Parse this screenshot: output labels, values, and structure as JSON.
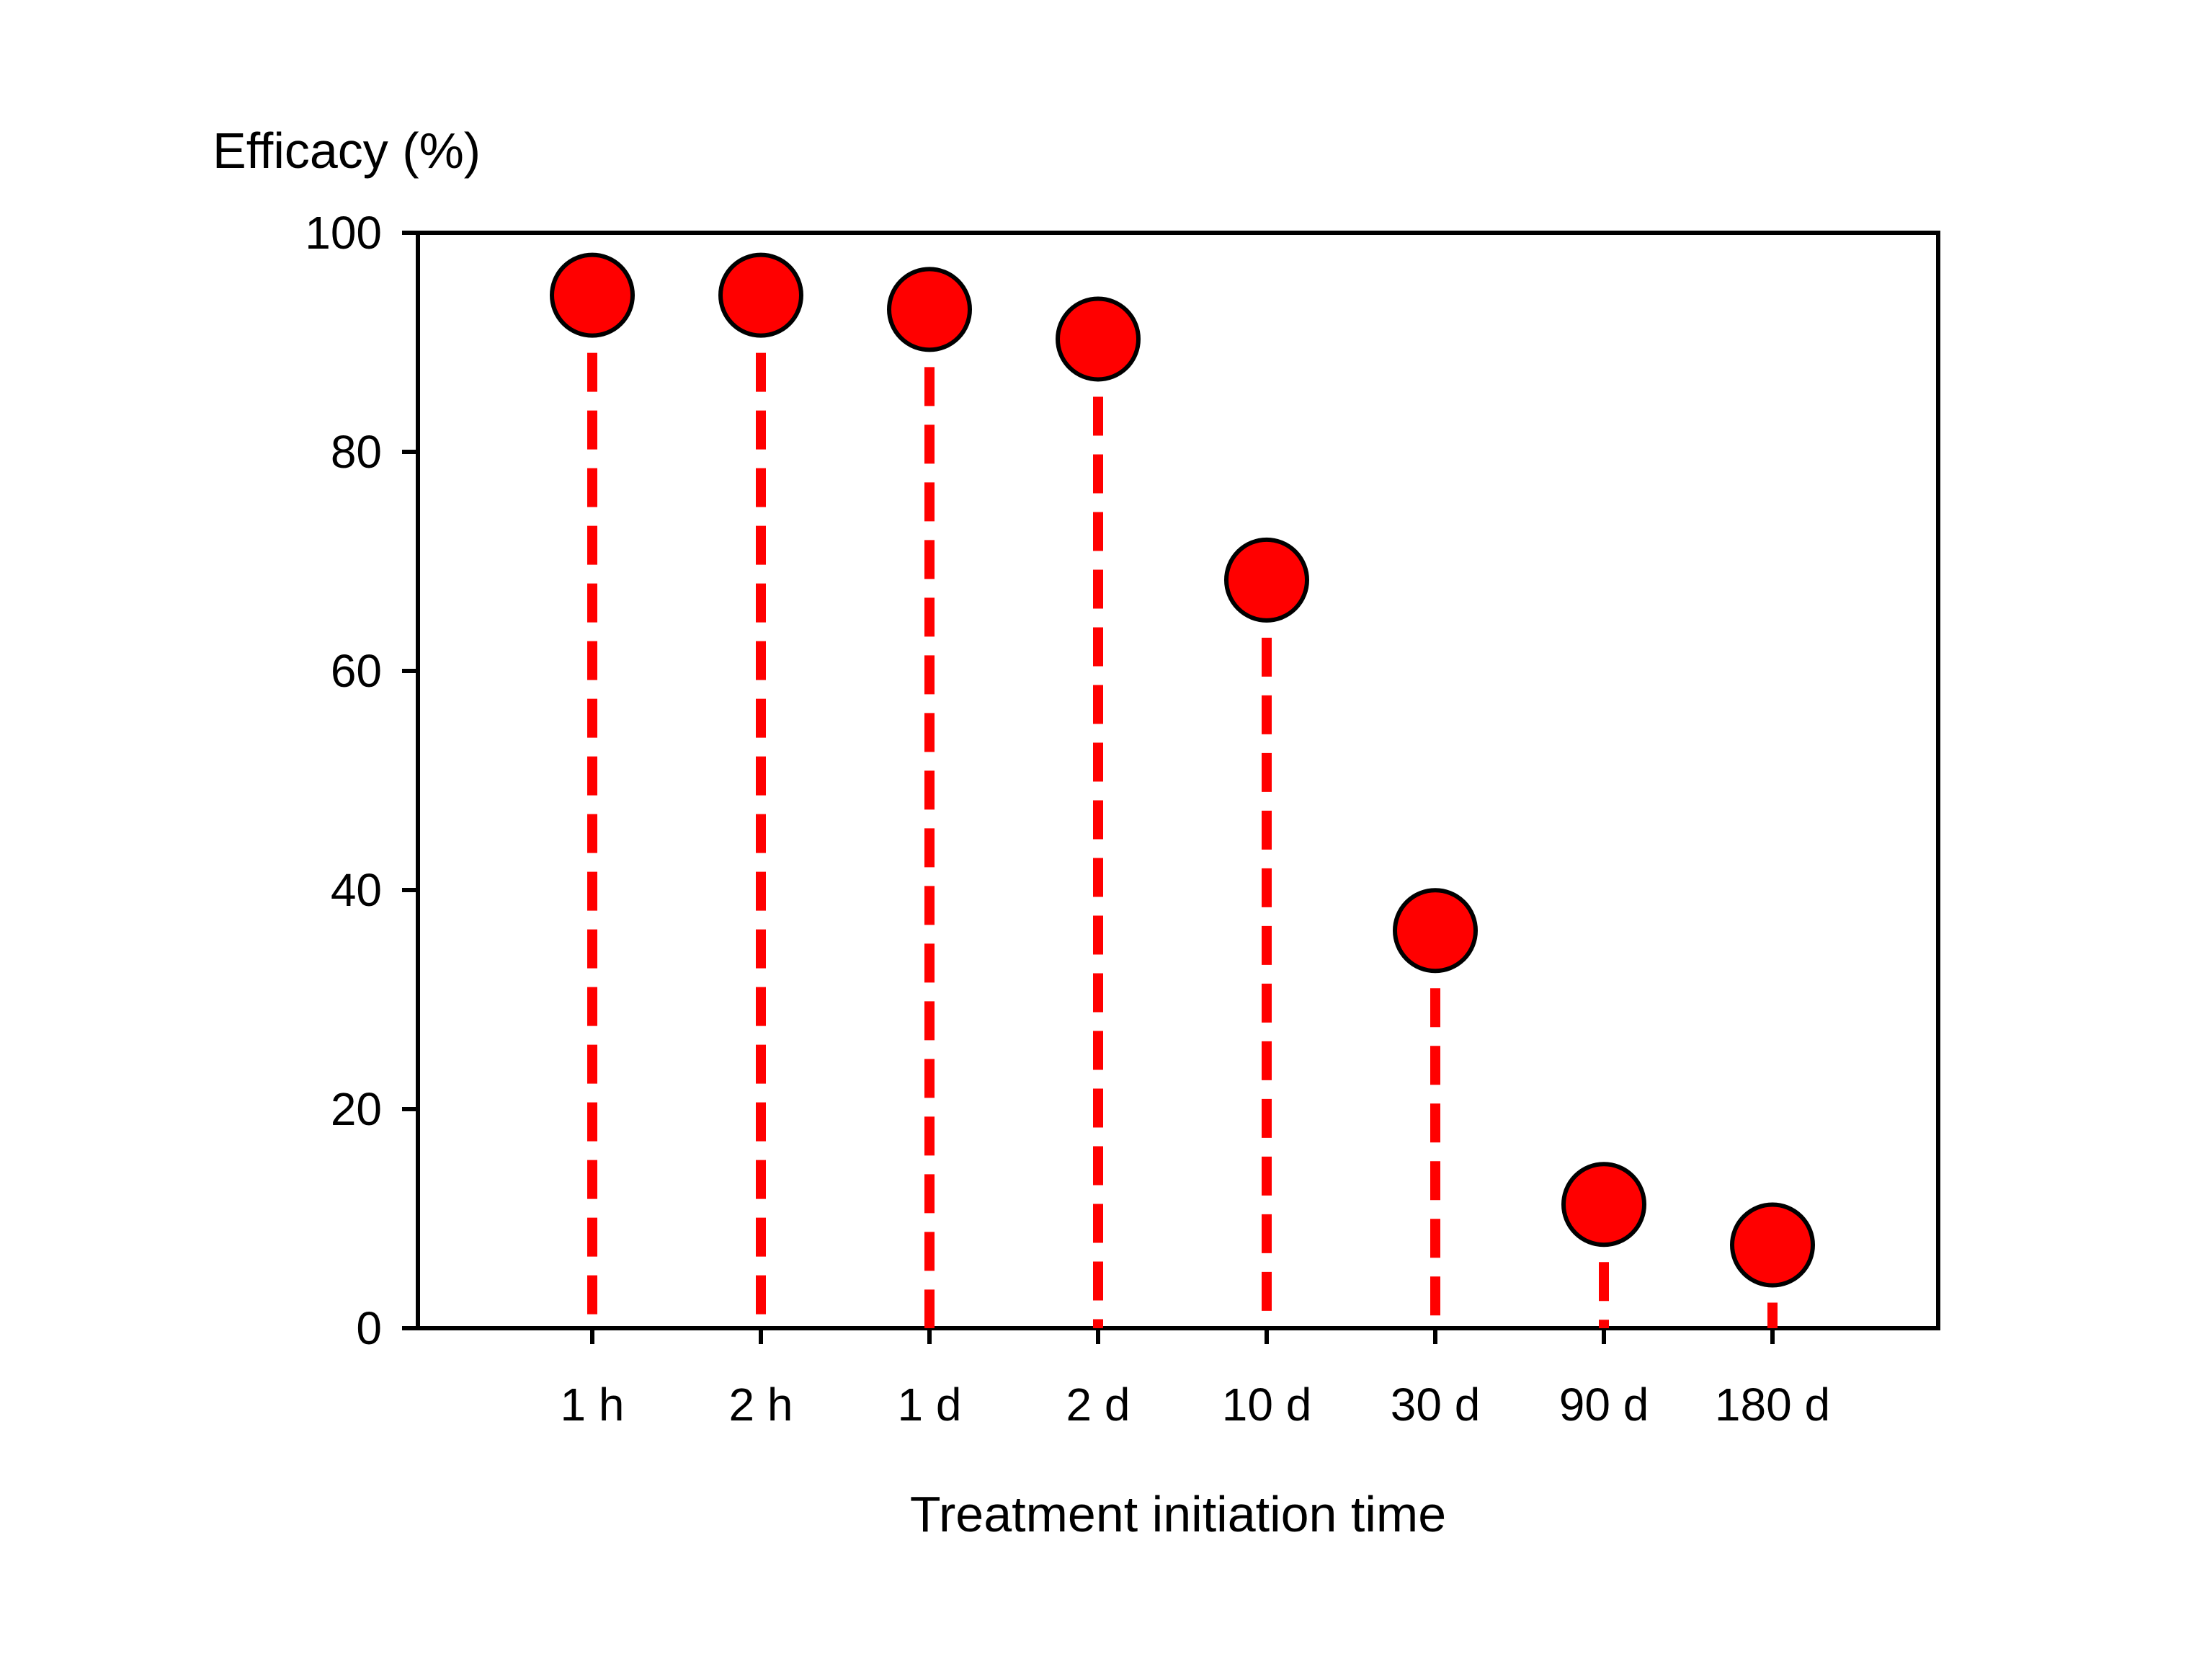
{
  "chart_data": {
    "type": "scatter",
    "title": "",
    "xlabel": "Treatment initiation time",
    "ylabel": "Efficacy (%)",
    "categories": [
      "1 h",
      "2 h",
      "1 d",
      "2 d",
      "10 d",
      "30 d",
      "90 d",
      "180 d"
    ],
    "values": [
      94.3,
      94.3,
      93.0,
      90.3,
      68.3,
      36.3,
      11.3,
      7.6
    ],
    "ylim": [
      0,
      100
    ],
    "yticks": [
      0,
      20,
      40,
      60,
      80,
      100
    ],
    "ytick_labels": [
      "0",
      "20",
      "40",
      "60",
      "80",
      "100"
    ],
    "grid": false,
    "legend": "none",
    "drop_lines": "dashed",
    "colors": {
      "marker": "#ff0000",
      "marker_edge": "#000000",
      "drop_line": "#ff0000",
      "axis": "#000000"
    }
  }
}
